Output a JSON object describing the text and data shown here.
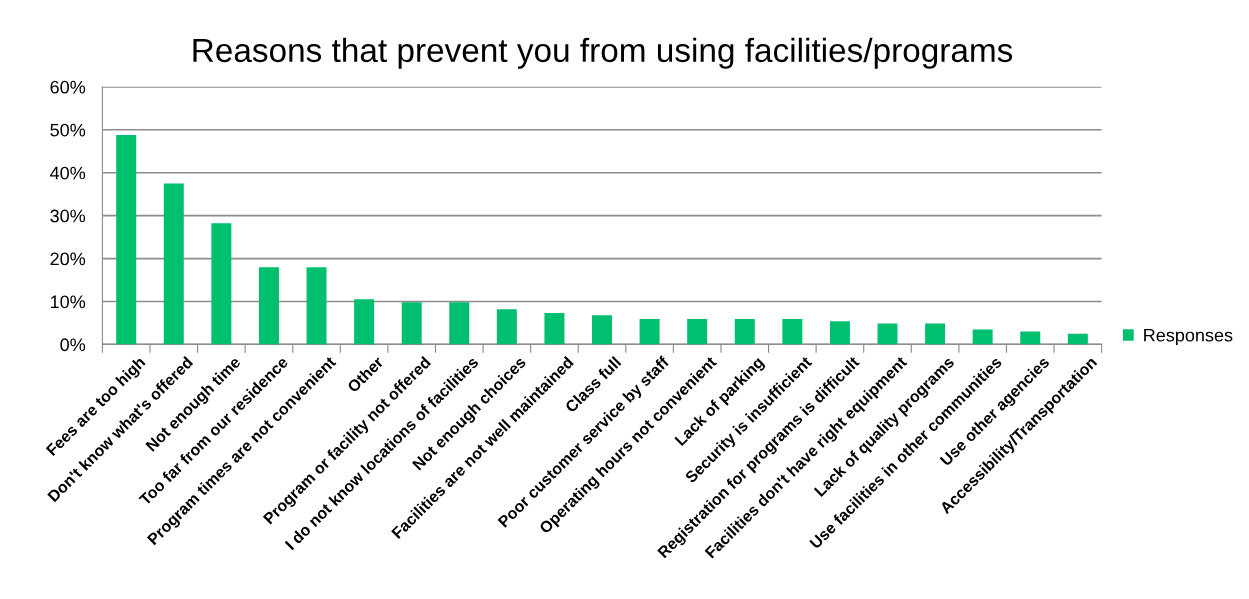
{
  "chart_data": {
    "type": "bar",
    "title": "Reasons that prevent you from using facilities/programs",
    "categories": [
      "Fees are too high",
      "Don't know what's offered",
      "Not enough time",
      "Too far from our residence",
      "Program times are not convenient",
      "Other",
      "Program or facility not offered",
      "I do not know locations of facilities",
      "Not enough choices",
      "Facilities are not well maintained",
      "Class full",
      "Poor customer service by staff",
      "Operating hours not convenient",
      "Lack of parking",
      "Security is insufficient",
      "Registration for programs is difficult",
      "Facilities don't have right equipment",
      "Lack of quality programs",
      "Use facilities in other communities",
      "Use other agencies",
      "Accessibility/Transportation"
    ],
    "series": [
      {
        "name": "Responses",
        "color": "#00bf6f",
        "values": [
          48.8,
          37.5,
          28.2,
          18,
          18,
          10.5,
          9.8,
          9.8,
          8.2,
          7.3,
          6.8,
          5.9,
          5.9,
          5.9,
          5.9,
          5.4,
          4.9,
          4.9,
          3.5,
          3.0,
          2.5
        ]
      }
    ],
    "ylim": [
      0,
      60
    ],
    "yticks": [
      {
        "value": 0,
        "label": "0%"
      },
      {
        "value": 10,
        "label": "10%"
      },
      {
        "value": 20,
        "label": "20%"
      },
      {
        "value": 30,
        "label": "30%"
      },
      {
        "value": 40,
        "label": "40%"
      },
      {
        "value": 50,
        "label": "50%"
      },
      {
        "value": 60,
        "label": "60%"
      }
    ],
    "grid": "y",
    "legend": "right"
  }
}
